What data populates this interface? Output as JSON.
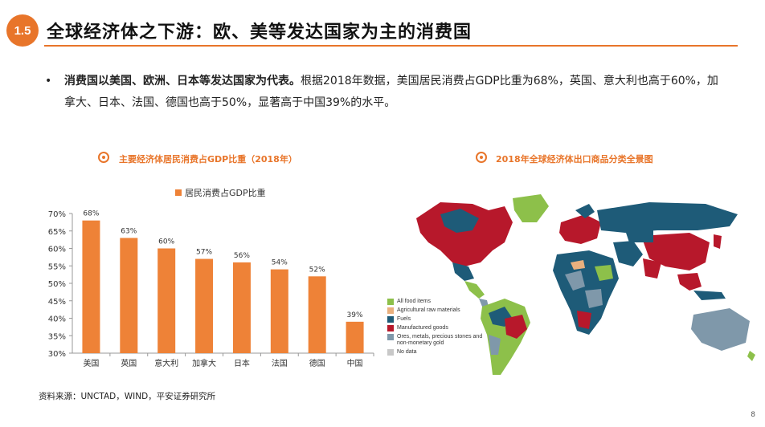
{
  "header": {
    "section_number": "1.5",
    "title": "全球经济体之下游：欧、美等发达国家为主的消费国"
  },
  "bullet": {
    "dot": "•",
    "lead_bold": "消费国以美国、欧洲、日本等发达国家为代表。",
    "body": "根据2018年数据，美国居民消费占GDP比重为68%，英国、意大利也高于60%，加拿大、日本、法国、德国也高于50%，显著高于中国39%的水平。"
  },
  "left_chart": {
    "title": "主要经济体居民消费占GDP比重（2018年）",
    "legend_label": "居民消费占GDP比重"
  },
  "chart_data": {
    "type": "bar",
    "categories": [
      "美国",
      "英国",
      "意大利",
      "加拿大",
      "日本",
      "法国",
      "德国",
      "中国"
    ],
    "series": [
      {
        "name": "居民消费占GDP比重",
        "values": [
          68,
          63,
          60,
          57,
          56,
          54,
          52,
          39
        ]
      }
    ],
    "data_labels": [
      "68%",
      "63%",
      "60%",
      "57%",
      "56%",
      "54%",
      "52%",
      "39%"
    ],
    "ylim": [
      30,
      70
    ],
    "yticks": [
      "30%",
      "35%",
      "40%",
      "45%",
      "50%",
      "55%",
      "60%",
      "65%",
      "70%"
    ],
    "bar_color": "#ee8237",
    "legend_position": "top-left"
  },
  "right_chart": {
    "title": "2018年全球经济体出口商品分类全景图",
    "legend": [
      {
        "label": "All food items",
        "color": "#8dc04a"
      },
      {
        "label": "Agricultural raw materials",
        "color": "#e9b07e"
      },
      {
        "label": "Fuels",
        "color": "#1e5b78"
      },
      {
        "label": "Manufactured goods",
        "color": "#b7182b"
      },
      {
        "label": "Ores, metals, precious stones and non-monetary gold",
        "color": "#7f98aa"
      },
      {
        "label": "No data",
        "color": "#c8c8c8"
      }
    ]
  },
  "footer": {
    "source": "资料来源：UNCTAD，WIND，平安证券研究所",
    "page_number": "8"
  },
  "colors": {
    "accent": "#e8752a"
  }
}
